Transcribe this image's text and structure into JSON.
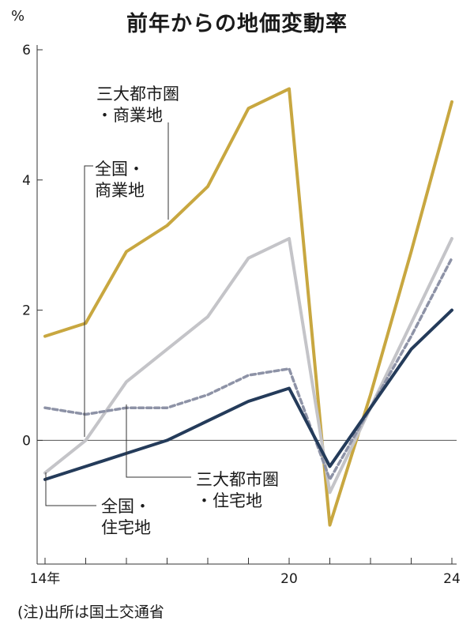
{
  "chart_data": {
    "type": "line",
    "title": "前年からの地価変動率",
    "unit": "%",
    "x": [
      2014,
      2015,
      2016,
      2017,
      2018,
      2019,
      2020,
      2021,
      2022,
      2023,
      2024
    ],
    "x_tick_labels": [
      {
        "x": 2014,
        "label": "14年"
      },
      {
        "x": 2020,
        "label": "20"
      },
      {
        "x": 2024,
        "label": "24"
      }
    ],
    "xlim": [
      2014,
      2024
    ],
    "ylim": [
      -1.9,
      6
    ],
    "y_ticks": [
      0,
      2,
      4,
      6
    ],
    "grid": false,
    "series": [
      {
        "name": "三大都市圏・商業地",
        "label_lines": [
          "三大都市圏",
          "・商業地"
        ],
        "color": "#c8a740",
        "dash": false,
        "values": [
          1.6,
          1.8,
          2.9,
          3.3,
          3.9,
          5.1,
          5.4,
          -1.3,
          0.7,
          2.9,
          5.2
        ]
      },
      {
        "name": "全国・商業地",
        "label_lines": [
          "全国・",
          "商業地"
        ],
        "color": "#c4c4c8",
        "dash": false,
        "values": [
          -0.5,
          0.0,
          0.9,
          1.4,
          1.9,
          2.8,
          3.1,
          -0.8,
          0.5,
          1.8,
          3.1
        ]
      },
      {
        "name": "三大都市圏・住宅地",
        "label_lines": [
          "三大都市圏",
          "・住宅地"
        ],
        "color": "#8d92a6",
        "dash": true,
        "values": [
          0.5,
          0.4,
          0.5,
          0.5,
          0.7,
          1.0,
          1.1,
          -0.6,
          0.5,
          1.6,
          2.8
        ]
      },
      {
        "name": "全国・住宅地",
        "label_lines": [
          "全国・",
          "住宅地"
        ],
        "color": "#243b5a",
        "dash": false,
        "values": [
          -0.6,
          -0.4,
          -0.2,
          0.0,
          0.3,
          0.6,
          0.8,
          -0.4,
          0.5,
          1.4,
          2.0
        ]
      }
    ],
    "annotations": {
      "note": "(注)出所は国土交通省"
    }
  }
}
